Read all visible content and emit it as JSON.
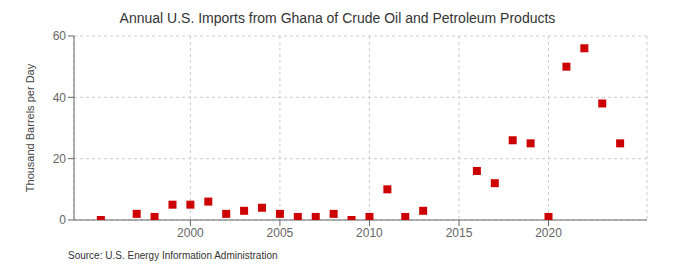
{
  "chart_data": {
    "type": "scatter",
    "title": "Annual U.S. Imports from Ghana of Crude Oil and Petroleum Products",
    "y_label": "Thousand Barrels per Day",
    "annotations": [
      "Source: U.S. Energy Information Administration"
    ],
    "x": [
      1995,
      1997,
      1998,
      1999,
      2000,
      2001,
      2002,
      2003,
      2004,
      2005,
      2006,
      2007,
      2008,
      2009,
      2010,
      2011,
      2012,
      2013,
      2016,
      2017,
      2018,
      2019,
      2020,
      2021,
      2022,
      2023,
      2024
    ],
    "values": [
      0,
      2,
      1,
      5,
      5,
      6,
      2,
      3,
      4,
      2,
      1,
      1,
      2,
      0,
      1,
      10,
      1,
      3,
      16,
      12,
      26,
      25,
      1,
      50,
      56,
      38,
      25
    ],
    "color": "#cc0000",
    "marker": "square",
    "xlim": [
      1993.5,
      2025.5
    ],
    "xticks": [
      2000,
      2005,
      2010,
      2015,
      2020
    ],
    "ylim": [
      0,
      60
    ],
    "yticks": [
      0,
      20,
      40,
      60
    ],
    "grid": true
  }
}
